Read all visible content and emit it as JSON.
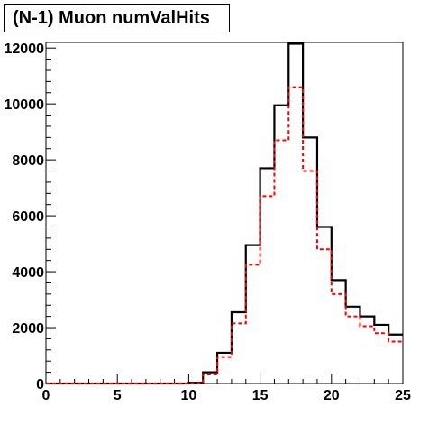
{
  "chart_data": {
    "type": "histogram",
    "title": "(N-1) Muon numValHits",
    "xlabel": "",
    "ylabel": "",
    "xlim": [
      0,
      25
    ],
    "ylim": [
      0,
      12200
    ],
    "x_ticks": [
      0,
      5,
      10,
      15,
      20,
      25
    ],
    "y_ticks": [
      0,
      2000,
      4000,
      6000,
      8000,
      10000,
      12000
    ],
    "bin_edges": [
      0,
      1,
      2,
      3,
      4,
      5,
      6,
      7,
      8,
      9,
      10,
      11,
      12,
      13,
      14,
      15,
      16,
      17,
      18,
      19,
      20,
      21,
      22,
      23,
      24,
      25
    ],
    "series": [
      {
        "style": "solid",
        "color": "#000000",
        "values": [
          0,
          0,
          0,
          0,
          0,
          0,
          0,
          0,
          0,
          0,
          30,
          400,
          1100,
          2550,
          4950,
          7700,
          9950,
          12150,
          8800,
          5600,
          3700,
          2750,
          2400,
          2100,
          1750
        ]
      },
      {
        "style": "dashed",
        "color": "#ff0000",
        "values": [
          0,
          0,
          0,
          0,
          0,
          0,
          0,
          0,
          0,
          0,
          20,
          330,
          950,
          2150,
          4250,
          6700,
          8700,
          10600,
          7600,
          4800,
          3200,
          2400,
          2050,
          1800,
          1500
        ]
      }
    ]
  }
}
